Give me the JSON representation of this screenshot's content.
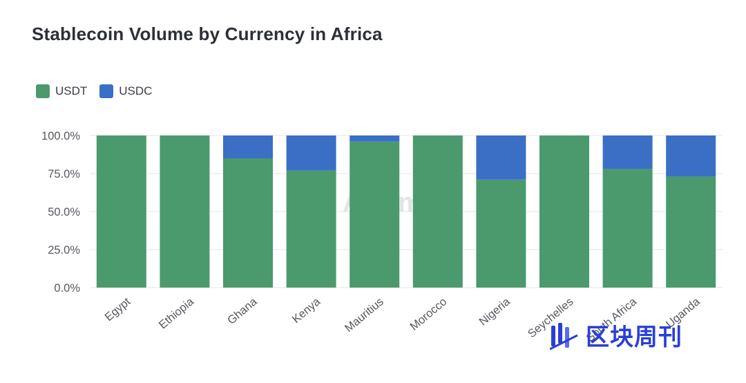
{
  "chart_data": {
    "type": "bar",
    "stacked": true,
    "title": "Stablecoin Volume by Currency in Africa",
    "categories": [
      "Egypt",
      "Ethiopia",
      "Ghana",
      "Kenya",
      "Mauritius",
      "Morocco",
      "Nigeria",
      "Seychelles",
      "South Africa",
      "Uganda"
    ],
    "series": [
      {
        "name": "USDT",
        "color": "#4a9a6e",
        "values": [
          100,
          100,
          85,
          77,
          96,
          100,
          71,
          100,
          78,
          73
        ]
      },
      {
        "name": "USDC",
        "color": "#3b6fc6",
        "values": [
          0,
          0,
          15,
          23,
          4,
          0,
          29,
          0,
          22,
          27
        ]
      }
    ],
    "ylim": [
      0,
      100
    ],
    "yticks": [
      "0.0%",
      "25.0%",
      "50.0%",
      "75.0%",
      "100.0%"
    ],
    "ytick_values": [
      0,
      25,
      50,
      75,
      100
    ],
    "grid": true,
    "legend_position": "top-left",
    "xlabel": "",
    "ylabel": ""
  },
  "watermark": {
    "text": "Artemis"
  },
  "brand": {
    "text": "区块周刊",
    "icon": "brand-bars-icon"
  }
}
